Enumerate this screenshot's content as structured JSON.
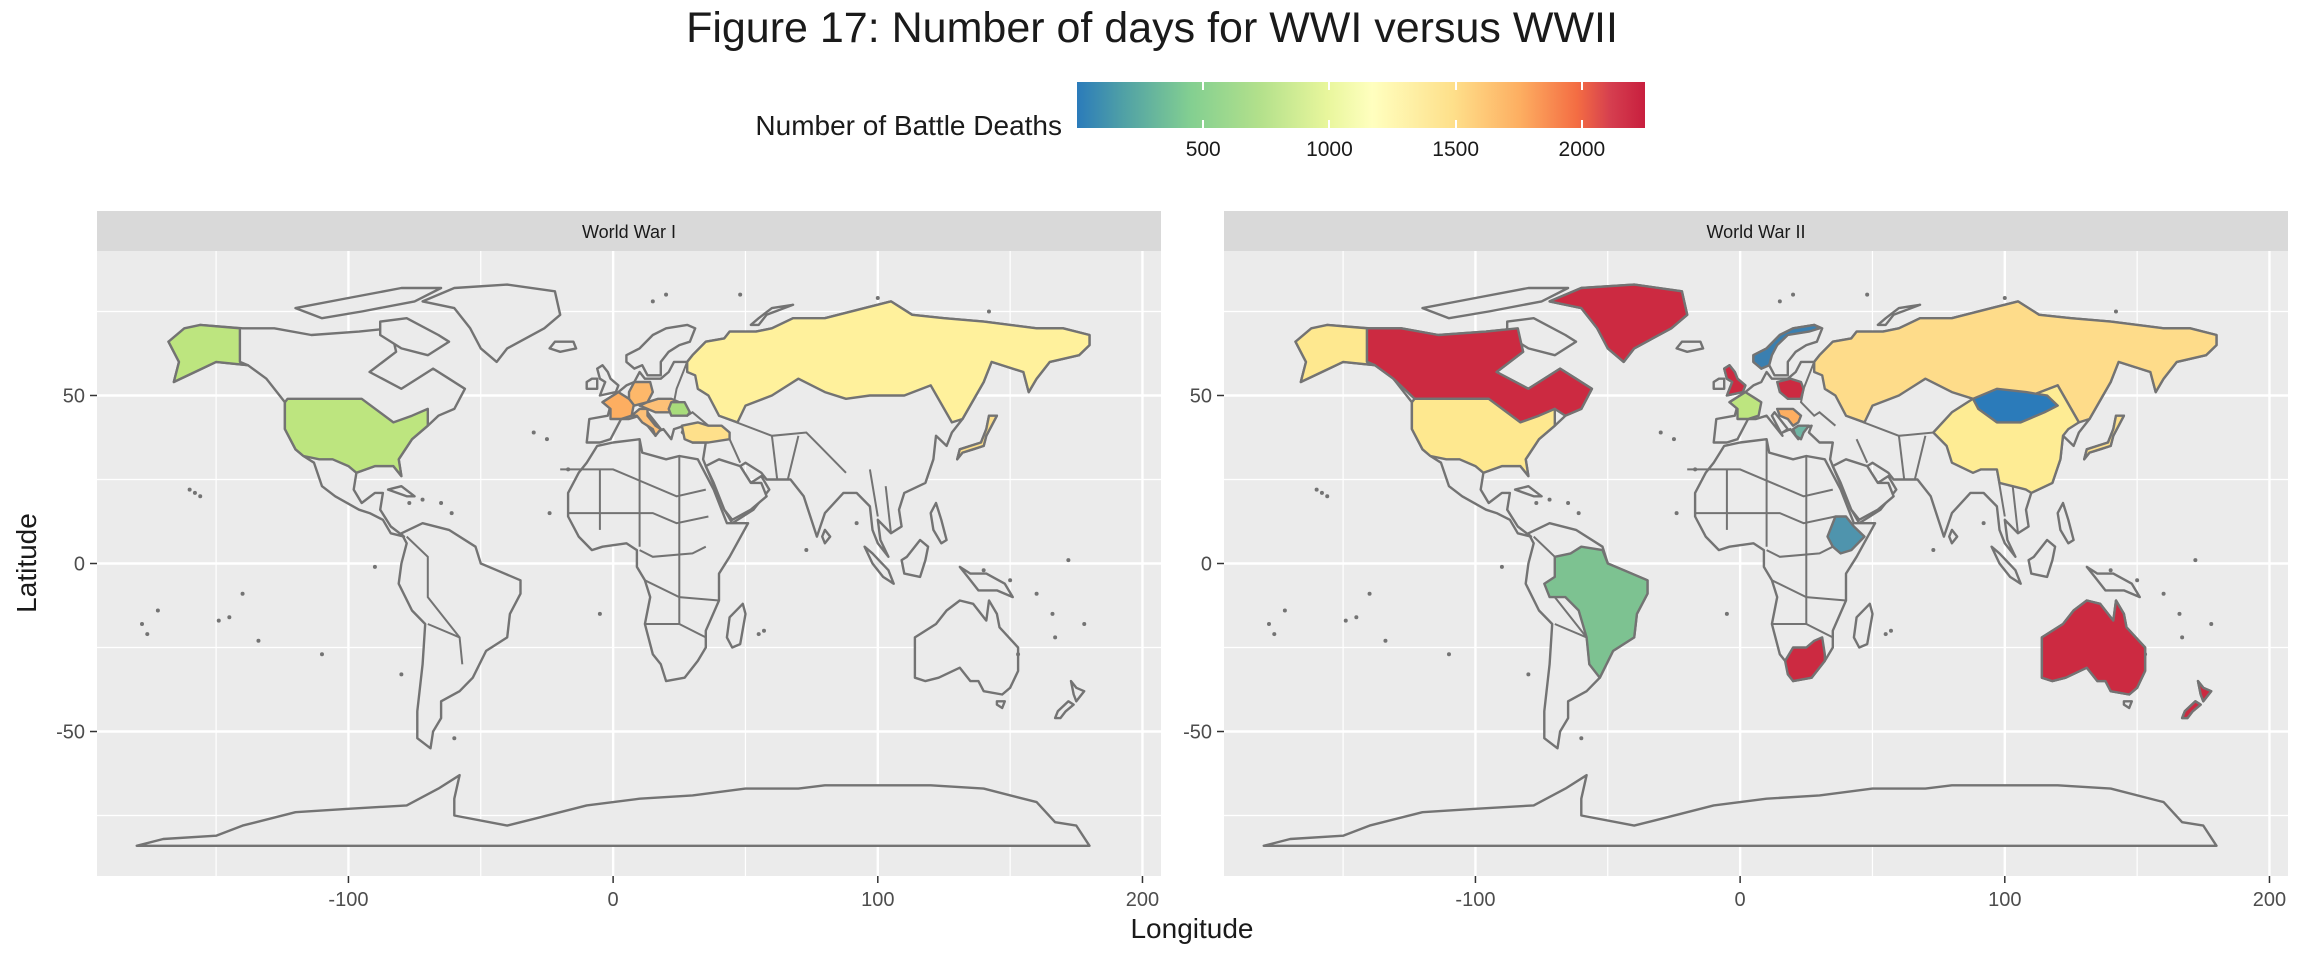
{
  "title": "Figure 17: Number of days for WWI versus WWII",
  "legend": {
    "title": "Number of Battle Deaths",
    "breaks": [
      500,
      1000,
      1500,
      2000
    ],
    "range": [
      0,
      2250
    ],
    "colors": [
      "#2b7bba",
      "#83cf91",
      "#ffffbf",
      "#fdae61",
      "#c81f3e"
    ]
  },
  "panels": [
    {
      "strip": "World War I",
      "countries": [
        {
          "name": "United States",
          "color": "#bde57f"
        },
        {
          "name": "Alaska",
          "color": "#bde57f"
        },
        {
          "name": "Russia",
          "color": "#fff19c"
        },
        {
          "name": "France",
          "color": "#fdae61"
        },
        {
          "name": "Germany",
          "color": "#fdb86a"
        },
        {
          "name": "Italy",
          "color": "#fdc077"
        },
        {
          "name": "Austria-Hungary",
          "color": "#fdc077"
        },
        {
          "name": "Romania",
          "color": "#a8dc7b"
        },
        {
          "name": "Turkey",
          "color": "#fee08b"
        },
        {
          "name": "Japan",
          "color": "#fee08b"
        }
      ]
    },
    {
      "strip": "World War II",
      "countries": [
        {
          "name": "Canada",
          "color": "#cc2a41"
        },
        {
          "name": "Greenland",
          "color": "#cc2a41"
        },
        {
          "name": "Alaska",
          "color": "#fee88f"
        },
        {
          "name": "United States",
          "color": "#fee88f"
        },
        {
          "name": "Russia",
          "color": "#fedc8a"
        },
        {
          "name": "China",
          "color": "#feec94"
        },
        {
          "name": "Mongolia",
          "color": "#2b7bba"
        },
        {
          "name": "Brazil",
          "color": "#7dc291"
        },
        {
          "name": "South Africa",
          "color": "#cc2a41"
        },
        {
          "name": "Australia",
          "color": "#cc2a41"
        },
        {
          "name": "New Zealand",
          "color": "#cc2a41"
        },
        {
          "name": "Ethiopia",
          "color": "#4f94ad"
        },
        {
          "name": "Norway",
          "color": "#3a7fb0"
        },
        {
          "name": "United Kingdom",
          "color": "#cc2a41"
        },
        {
          "name": "France",
          "color": "#bde57f"
        },
        {
          "name": "Poland",
          "color": "#cc2a41"
        },
        {
          "name": "Greece",
          "color": "#6fb6a4"
        },
        {
          "name": "Yugoslavia",
          "color": "#fdae61"
        },
        {
          "name": "Japan",
          "color": "#fee08b"
        }
      ]
    }
  ],
  "axes": {
    "xlabel": "Longitude",
    "ylabel": "Latitude",
    "xlim": [
      -195,
      207
    ],
    "ylim": [
      -93,
      93
    ],
    "xticks": [
      -100,
      0,
      100,
      200
    ],
    "yticks": [
      -50,
      0,
      50
    ],
    "xtick_labels": [
      "-100",
      "0",
      "100",
      "200"
    ],
    "ytick_labels": [
      "-50",
      "0",
      "50"
    ]
  },
  "colors": {
    "panel_bg": "#ebebeb",
    "strip_bg": "#d9d9d9",
    "grid": "#ffffff",
    "border": "#737373",
    "land": "#ebebeb"
  }
}
